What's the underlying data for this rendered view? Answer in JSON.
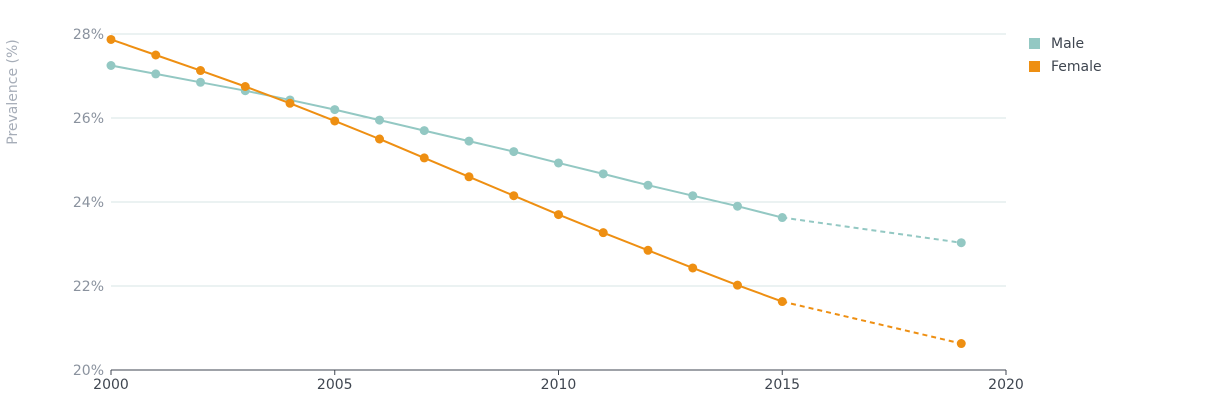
{
  "chart_data": {
    "type": "line",
    "title": "",
    "xlabel": "",
    "ylabel": "Prevalence (%)",
    "xlim": [
      2000,
      2020
    ],
    "ylim": [
      20,
      28
    ],
    "x_ticks": [
      2000,
      2005,
      2010,
      2015,
      2020
    ],
    "x_tick_labels": [
      "2000",
      "2005",
      "2010",
      "2015",
      "2020"
    ],
    "y_ticks": [
      20,
      22,
      24,
      26,
      28
    ],
    "y_tick_labels": [
      "20%",
      "22%",
      "24%",
      "26%",
      "28%"
    ],
    "grid": "horizontal",
    "legend_position": "top-right",
    "series": [
      {
        "name": "Male",
        "color": "#93c8c3",
        "x": [
          2000,
          2001,
          2002,
          2003,
          2004,
          2005,
          2006,
          2007,
          2008,
          2009,
          2010,
          2011,
          2012,
          2013,
          2014,
          2015,
          2019
        ],
        "values": [
          27.25,
          27.05,
          26.85,
          26.65,
          26.43,
          26.2,
          25.95,
          25.7,
          25.45,
          25.2,
          24.93,
          24.67,
          24.4,
          24.15,
          23.9,
          23.63,
          23.03
        ],
        "dashed_from_x": 2015
      },
      {
        "name": "Female",
        "color": "#ee8f12",
        "x": [
          2000,
          2001,
          2002,
          2003,
          2004,
          2005,
          2006,
          2007,
          2008,
          2009,
          2010,
          2011,
          2012,
          2013,
          2014,
          2015,
          2019
        ],
        "values": [
          27.87,
          27.5,
          27.13,
          26.75,
          26.35,
          25.93,
          25.5,
          25.05,
          24.6,
          24.15,
          23.7,
          23.27,
          22.85,
          22.43,
          22.02,
          21.63,
          20.63
        ],
        "dashed_from_x": 2015
      }
    ]
  }
}
